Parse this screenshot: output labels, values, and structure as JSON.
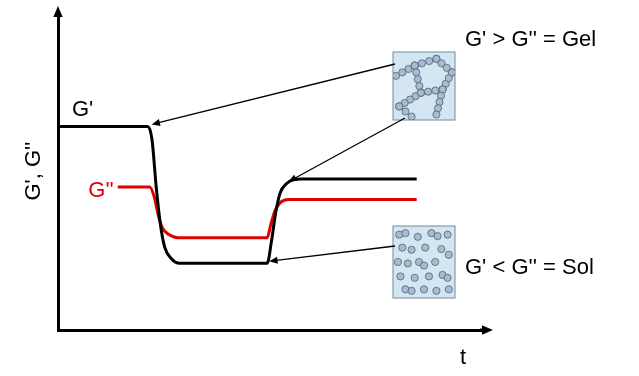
{
  "chart_data": {
    "type": "line",
    "x_label": "t",
    "y_label": "G', G''",
    "xlim": [
      0,
      100
    ],
    "ylim": [
      0,
      100
    ],
    "tick_labels": false,
    "grid": false,
    "legend": false,
    "series": [
      {
        "name": "G'",
        "color": "#000000",
        "x": [
          0,
          21,
          22,
          23,
          24,
          25,
          26.5,
          28.5,
          49,
          50,
          51,
          52,
          53.5,
          55,
          57,
          84
        ],
        "values": [
          64,
          64,
          60,
          45,
          33,
          26,
          22.5,
          21,
          21,
          28,
          37,
          43,
          46,
          47.2,
          47.5,
          47.5
        ]
      },
      {
        "name": "G''",
        "color": "#e00000",
        "x": [
          14,
          21.5,
          22.5,
          23.5,
          24.5,
          26,
          28,
          49,
          49.8,
          50.8,
          52,
          54,
          84
        ],
        "values": [
          45,
          45,
          42,
          36,
          32,
          30,
          29,
          29,
          33,
          37.5,
          40,
          41,
          41
        ]
      }
    ],
    "annotations": [
      "G' > G'' = Gel",
      "G' < G'' = Sol"
    ]
  }
}
